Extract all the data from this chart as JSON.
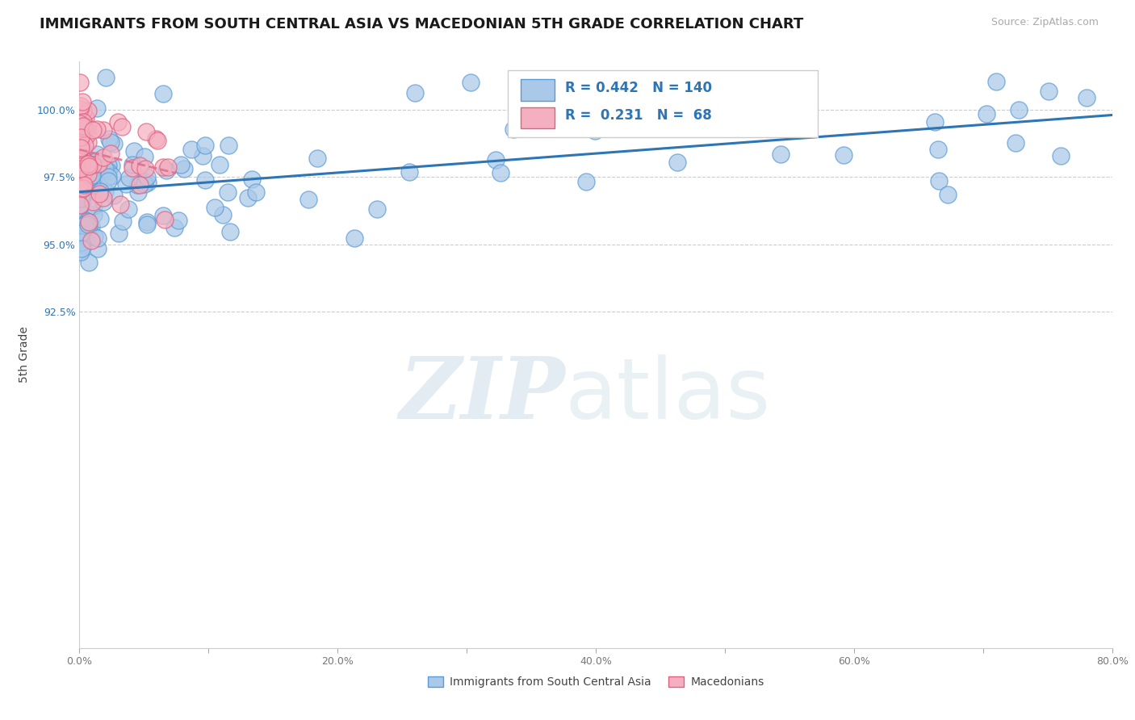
{
  "title": "IMMIGRANTS FROM SOUTH CENTRAL ASIA VS MACEDONIAN 5TH GRADE CORRELATION CHART",
  "source_text": "Source: ZipAtlas.com",
  "ylabel": "5th Grade",
  "xlim": [
    0.0,
    80.0
  ],
  "ylim": [
    80.0,
    101.8
  ],
  "xticks": [
    0.0,
    10.0,
    20.0,
    30.0,
    40.0,
    50.0,
    60.0,
    70.0,
    80.0
  ],
  "xticklabels": [
    "0.0%",
    "",
    "20.0%",
    "",
    "40.0%",
    "",
    "60.0%",
    "",
    "80.0%"
  ],
  "yticks": [
    92.5,
    95.0,
    97.5,
    100.0
  ],
  "yticklabels": [
    "92.5%",
    "95.0%",
    "97.5%",
    "100.0%"
  ],
  "legend_blue_label": "Immigrants from South Central Asia",
  "legend_pink_label": "Macedonians",
  "blue_R": 0.442,
  "blue_N": 140,
  "pink_R": 0.231,
  "pink_N": 68,
  "blue_color": "#aac8e8",
  "blue_edge_color": "#5b9bd5",
  "pink_color": "#f4b0c0",
  "pink_edge_color": "#e06080",
  "blue_line_color": "#2e75b6",
  "pink_line_color": "#e07090",
  "watermark_color": "#ccdde8",
  "title_fontsize": 13,
  "axis_label_fontsize": 10,
  "tick_fontsize": 9,
  "legend_fontsize": 10,
  "background_color": "#ffffff",
  "seed_blue": 42,
  "seed_pink": 99
}
